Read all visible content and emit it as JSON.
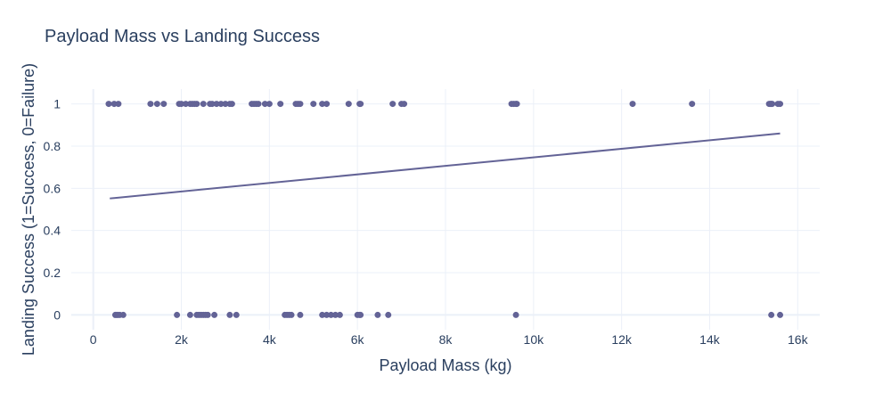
{
  "chart_data": {
    "type": "scatter",
    "title": "Payload Mass vs Landing Success",
    "xlabel": "Payload Mass (kg)",
    "ylabel": "Landing Success (1=Success, 0=Failure)",
    "xlim": [
      -500,
      16500
    ],
    "ylim": [
      -0.07,
      1.07
    ],
    "x_ticks": [
      0,
      2000,
      4000,
      6000,
      8000,
      10000,
      12000,
      14000,
      16000
    ],
    "x_tick_labels": [
      "0",
      "2k",
      "4k",
      "6k",
      "8k",
      "10k",
      "12k",
      "14k",
      "16k"
    ],
    "y_ticks": [
      0,
      0.2,
      0.4,
      0.6,
      0.8,
      1
    ],
    "y_tick_labels": [
      "0",
      "0.2",
      "0.4",
      "0.6",
      "0.8",
      "1"
    ],
    "grid": true,
    "legend": "none",
    "colors": {
      "marker": "#636396",
      "trend": "#636396",
      "grid": "#ebf0f8",
      "text": "#2a3f5f"
    },
    "series": [
      {
        "type": "scatter",
        "x": [
          350,
          475,
          570,
          1300,
          1450,
          1600,
          1950,
          2000,
          2100,
          2200,
          2250,
          2300,
          2350,
          2500,
          2650,
          2700,
          2800,
          2900,
          3000,
          3100,
          3150,
          3600,
          3650,
          3700,
          3750,
          3900,
          4000,
          4250,
          4600,
          4650,
          4700,
          5000,
          5200,
          5300,
          5800,
          6050,
          6070,
          6800,
          7000,
          7060,
          9500,
          9550,
          9600,
          9620,
          12250,
          13600,
          15350,
          15380,
          15400,
          15420,
          15550,
          15600,
          500,
          530,
          560,
          600,
          680,
          1900,
          2200,
          2350,
          2400,
          2450,
          2500,
          2550,
          2600,
          2750,
          3100,
          3250,
          4350,
          4400,
          4450,
          4500,
          4700,
          5200,
          5300,
          5400,
          5500,
          5600,
          6000,
          6050,
          6070,
          6460,
          6700,
          9600,
          15400,
          15600
        ],
        "y": [
          1,
          1,
          1,
          1,
          1,
          1,
          1,
          1,
          1,
          1,
          1,
          1,
          1,
          1,
          1,
          1,
          1,
          1,
          1,
          1,
          1,
          1,
          1,
          1,
          1,
          1,
          1,
          1,
          1,
          1,
          1,
          1,
          1,
          1,
          1,
          1,
          1,
          1,
          1,
          1,
          1,
          1,
          1,
          1,
          1,
          1,
          1,
          1,
          1,
          1,
          1,
          1,
          0,
          0,
          0,
          0,
          0,
          0,
          0,
          0,
          0,
          0,
          0,
          0,
          0,
          0,
          0,
          0,
          0,
          0,
          0,
          0,
          0,
          0,
          0,
          0,
          0,
          0,
          0,
          0,
          0,
          0,
          0,
          0,
          0,
          0
        ]
      },
      {
        "type": "line",
        "x": [
          375,
          15600
        ],
        "y": [
          0.552,
          0.86
        ]
      }
    ]
  }
}
